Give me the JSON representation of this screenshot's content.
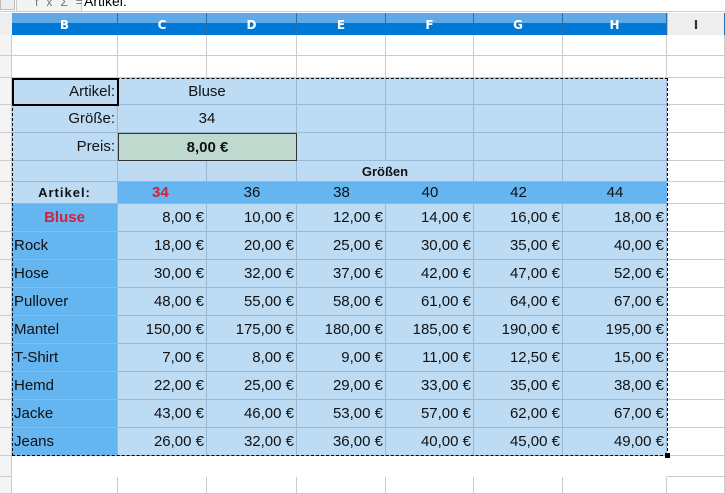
{
  "formula_bar": {
    "icons": [
      "function-icon",
      "sum-icon",
      "equals-icon"
    ],
    "icon_glyphs": "fxΣ=",
    "content": "Artikel:"
  },
  "columns": [
    "B",
    "C",
    "D",
    "E",
    "F",
    "G",
    "H",
    "I"
  ],
  "lookup": {
    "artikel_label": "Artikel:",
    "artikel_value": "Bluse",
    "groesse_label": "Größe:",
    "groesse_value": "34",
    "preis_label": "Preis:",
    "preis_value": "8,00 €"
  },
  "table": {
    "group_header": "Größen",
    "row_header_label": "Artikel:",
    "sizes": [
      "34",
      "36",
      "38",
      "40",
      "42",
      "44"
    ],
    "highlight_size": "34",
    "highlight_article": "Bluse",
    "rows": [
      {
        "article": "Bluse",
        "prices": [
          "8,00 €",
          "10,00 €",
          "12,00 €",
          "14,00 €",
          "16,00 €",
          "18,00 €"
        ]
      },
      {
        "article": "Rock",
        "prices": [
          "18,00 €",
          "20,00 €",
          "25,00 €",
          "30,00 €",
          "35,00 €",
          "40,00 €"
        ]
      },
      {
        "article": "Hose",
        "prices": [
          "30,00 €",
          "32,00 €",
          "37,00 €",
          "42,00 €",
          "47,00 €",
          "52,00 €"
        ]
      },
      {
        "article": "Pullover",
        "prices": [
          "48,00 €",
          "55,00 €",
          "58,00 €",
          "61,00 €",
          "64,00 €",
          "67,00 €"
        ]
      },
      {
        "article": "Mantel",
        "prices": [
          "150,00 €",
          "175,00 €",
          "180,00 €",
          "185,00 €",
          "190,00 €",
          "195,00 €"
        ]
      },
      {
        "article": "T-Shirt",
        "prices": [
          "7,00 €",
          "8,00 €",
          "9,00 €",
          "11,00 €",
          "12,50 €",
          "15,00 €"
        ]
      },
      {
        "article": "Hemd",
        "prices": [
          "22,00 €",
          "25,00 €",
          "29,00 €",
          "33,00 €",
          "35,00 €",
          "38,00 €"
        ]
      },
      {
        "article": "Jacke",
        "prices": [
          "43,00 €",
          "46,00 €",
          "53,00 €",
          "57,00 €",
          "62,00 €",
          "67,00 €"
        ]
      },
      {
        "article": "Jeans",
        "prices": [
          "26,00 €",
          "32,00 €",
          "36,00 €",
          "40,00 €",
          "45,00 €",
          "49,00 €"
        ]
      }
    ]
  },
  "colors": {
    "header_blue": "#0078d7",
    "light_blue": "#bddcf4",
    "mid_blue": "#64b5f0",
    "price_green": "#c0d9cf",
    "highlight_red": "#d0213e"
  }
}
